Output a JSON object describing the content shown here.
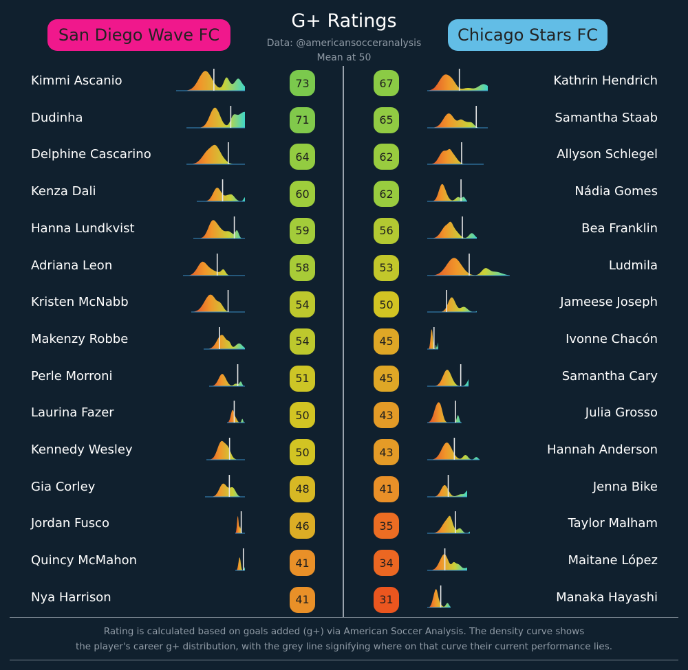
{
  "title": "G+ Ratings",
  "subtitle_lines": [
    "Data: @americansocceranalysis",
    "Mean at 50"
  ],
  "footer_lines": [
    "Rating is calculated based on goals added (g+) via American Soccer Analysis. The density curve shows",
    "the player's career g+ distribution, with the grey line signifying where on that curve their current performance lies."
  ],
  "colors": {
    "background": "#10202e",
    "left_team": "#f0188c",
    "right_team": "#62bde6",
    "divider": "#9aa3ad"
  },
  "teams": {
    "left": {
      "name": "San Diego Wave FC"
    },
    "right": {
      "name": "Chicago Stars FC"
    }
  },
  "chart_data": [
    {
      "type": "table",
      "team": "San Diego Wave FC",
      "players": [
        {
          "name": "Kimmi Ascanio",
          "rating": 73
        },
        {
          "name": "Dudinha",
          "rating": 71
        },
        {
          "name": "Delphine Cascarino",
          "rating": 64
        },
        {
          "name": "Kenza Dali",
          "rating": 60
        },
        {
          "name": "Hanna Lundkvist",
          "rating": 59
        },
        {
          "name": "Adriana Leon",
          "rating": 58
        },
        {
          "name": "Kristen McNabb",
          "rating": 54
        },
        {
          "name": "Makenzy Robbe",
          "rating": 54
        },
        {
          "name": "Perle Morroni",
          "rating": 51
        },
        {
          "name": "Laurina Fazer",
          "rating": 50
        },
        {
          "name": "Kennedy Wesley",
          "rating": 50
        },
        {
          "name": "Gia Corley",
          "rating": 48
        },
        {
          "name": "Jordan Fusco",
          "rating": 46
        },
        {
          "name": "Quincy McMahon",
          "rating": 41
        },
        {
          "name": "Nya Harrison",
          "rating": 41
        }
      ]
    },
    {
      "type": "table",
      "team": "Chicago Stars FC",
      "players": [
        {
          "name": "Kathrin Hendrich",
          "rating": 67
        },
        {
          "name": "Samantha Staab",
          "rating": 65
        },
        {
          "name": "Allyson Schlegel",
          "rating": 62
        },
        {
          "name": "Nádia Gomes",
          "rating": 62
        },
        {
          "name": "Bea Franklin",
          "rating": 56
        },
        {
          "name": "Ludmila",
          "rating": 53
        },
        {
          "name": "Jameese Joseph",
          "rating": 50
        },
        {
          "name": "Ivonne Chacón",
          "rating": 45
        },
        {
          "name": "Samantha Cary",
          "rating": 45
        },
        {
          "name": "Julia Grosso",
          "rating": 43
        },
        {
          "name": "Hannah Anderson",
          "rating": 43
        },
        {
          "name": "Jenna Bike",
          "rating": 41
        },
        {
          "name": "Taylor Malham",
          "rating": 35
        },
        {
          "name": "Maitane López",
          "rating": 34
        },
        {
          "name": "Manaka Hayashi",
          "rating": 31
        }
      ]
    }
  ]
}
